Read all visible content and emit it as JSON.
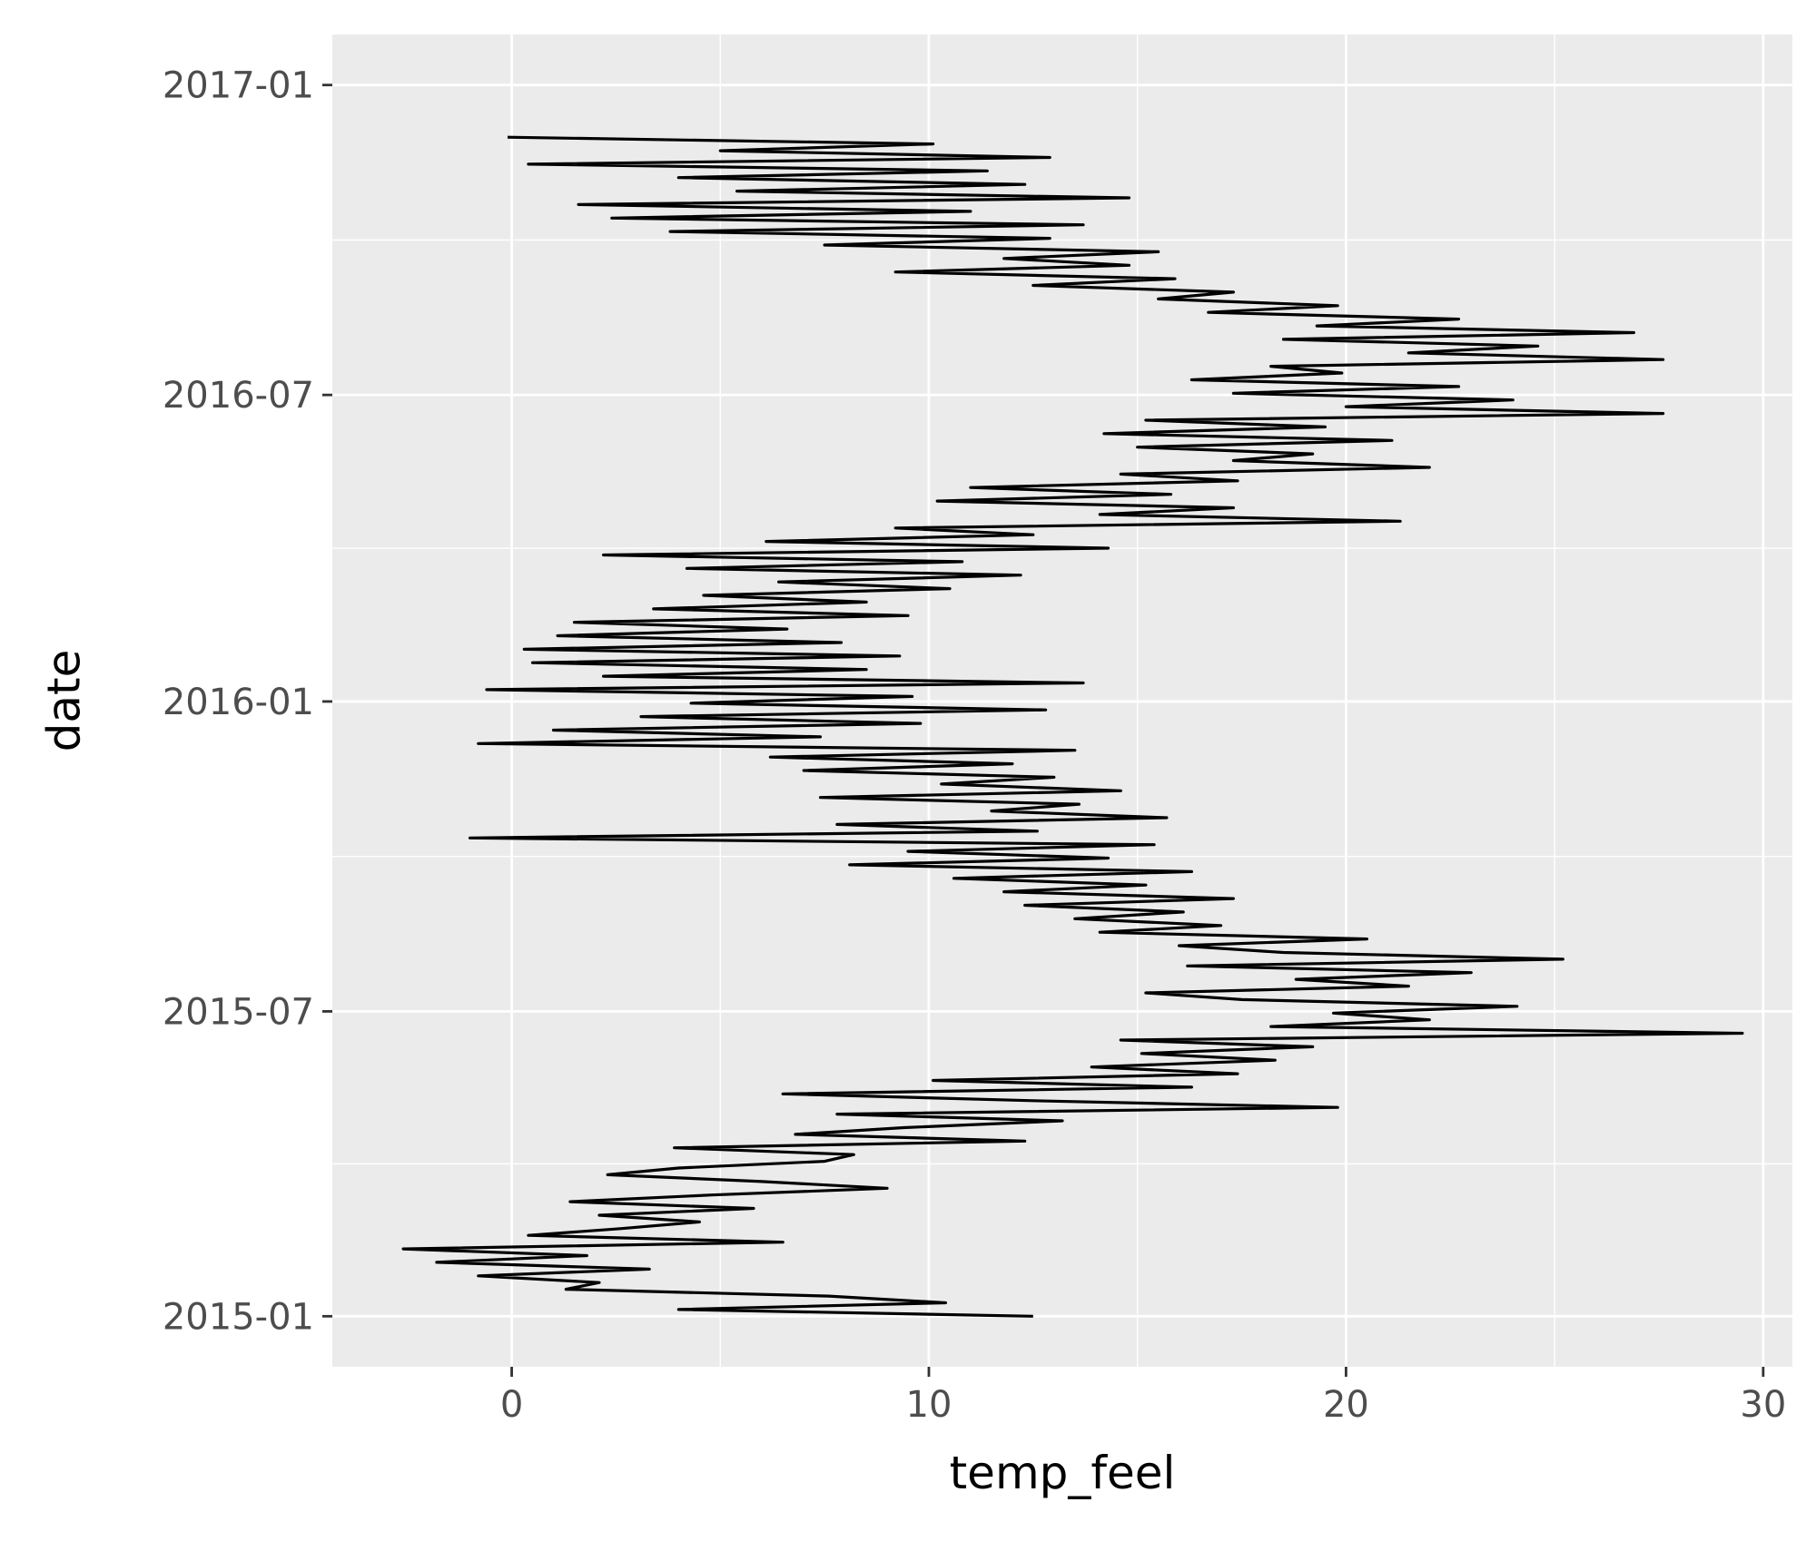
{
  "chart_data": {
    "type": "line",
    "orientation": "horizontal-path",
    "xlabel": "temp_feel",
    "ylabel": "date",
    "xlim": [
      -4.3,
      30.7
    ],
    "ylim": [
      "2014-12-02",
      "2017-01-31"
    ],
    "x_ticks": [
      0,
      10,
      20,
      30
    ],
    "x_tick_labels": [
      "0",
      "10",
      "20",
      "30"
    ],
    "y_ticks": [
      "2015-01-01",
      "2015-07-01",
      "2016-01-01",
      "2016-07-01",
      "2017-01-01"
    ],
    "y_tick_labels": [
      "2015-01",
      "2015-07",
      "2016-01",
      "2016-07",
      "2017-01"
    ],
    "grid": true,
    "legend": "none",
    "colors": {
      "panel": "#ebebeb",
      "grid": "#ffffff",
      "line": "#000000",
      "tick": "#4d4d4d"
    },
    "series": [
      {
        "date_start": "2015-01-01",
        "date_end": "2016-12-31",
        "step_days": 4,
        "values": [
          12.5,
          4.0,
          10.4,
          7.6,
          1.3,
          2.1,
          -0.8,
          3.3,
          -1.8,
          1.8,
          -2.6,
          6.5,
          0.4,
          2.6,
          4.5,
          2.1,
          5.8,
          1.4,
          4.8,
          9.0,
          6.0,
          2.3,
          4.0,
          7.5,
          8.2,
          3.9,
          12.3,
          6.8,
          9.4,
          13.2,
          7.8,
          19.8,
          12.5,
          6.5,
          16.3,
          10.1,
          17.4,
          13.9,
          18.3,
          15.1,
          19.2,
          14.6,
          29.5,
          18.2,
          22.0,
          19.7,
          24.1,
          17.5,
          15.2,
          21.5,
          18.8,
          23.0,
          16.2,
          25.2,
          18.5,
          16.0,
          20.5,
          14.1,
          17.0,
          13.5,
          16.1,
          12.3,
          17.3,
          11.8,
          15.2,
          10.6,
          16.3,
          8.1,
          14.3,
          9.5,
          15.4,
          -1.0,
          12.6,
          7.8,
          15.7,
          11.5,
          13.6,
          7.4,
          14.6,
          10.3,
          13.0,
          7.0,
          12.0,
          6.2,
          13.5,
          -0.8,
          7.4,
          1.0,
          9.8,
          3.1,
          12.8,
          4.3,
          9.6,
          -0.6,
          13.7,
          2.2,
          8.5,
          0.5,
          9.3,
          0.3,
          7.9,
          1.1,
          6.6,
          1.5,
          9.5,
          3.4,
          8.5,
          4.6,
          10.5,
          6.4,
          12.2,
          4.2,
          10.8,
          2.2,
          14.3,
          6.1,
          12.5,
          9.2,
          21.3,
          14.1,
          17.3,
          10.2,
          15.8,
          11.0,
          17.4,
          14.6,
          22.0,
          17.3,
          19.2,
          15.0,
          21.1,
          14.2,
          19.5,
          15.2,
          27.6,
          20.0,
          24.0,
          17.3,
          22.7,
          16.3,
          19.9,
          18.2,
          27.6,
          21.5,
          24.6,
          18.5,
          26.9,
          19.3,
          22.7,
          16.7,
          19.8,
          15.5,
          17.3,
          12.5,
          15.9,
          9.2,
          14.8,
          11.8,
          15.5,
          7.5,
          12.9,
          3.8,
          13.7,
          2.4,
          11.0,
          1.6,
          14.8,
          5.4,
          12.3,
          4.0,
          11.4,
          0.4,
          12.9,
          5.0,
          10.1,
          -0.1
        ]
      }
    ]
  }
}
